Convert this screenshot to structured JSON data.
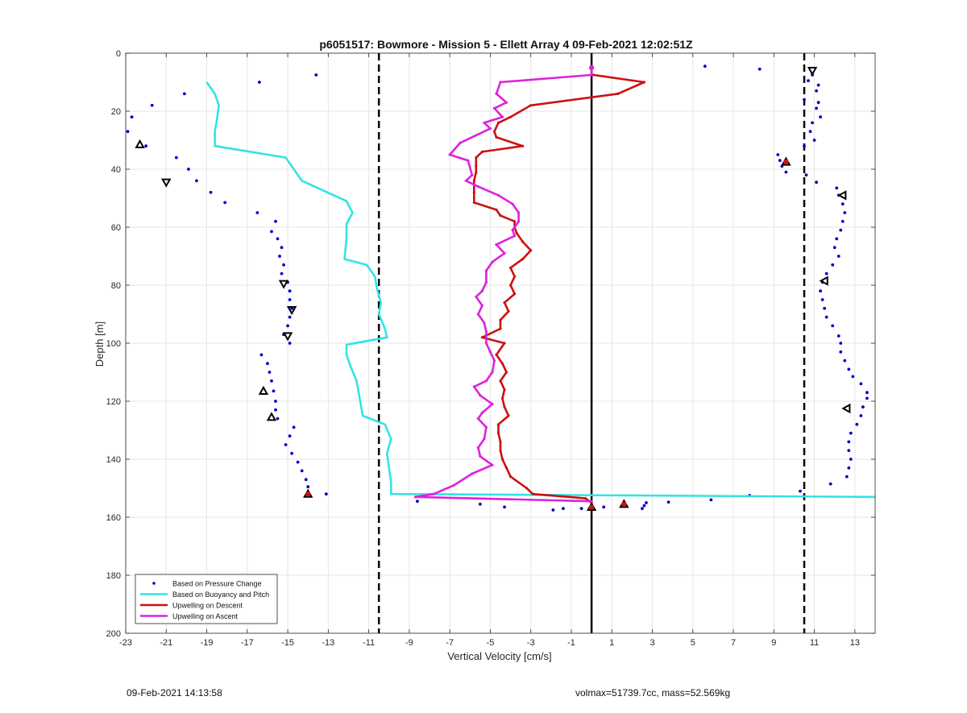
{
  "footer": {
    "date": "09-Feb-2021 14:13:58",
    "params": "volmax=51739.7cc, mass=52.569kg"
  },
  "chart_data": {
    "type": "line",
    "title": "p6051517: Bowmore - Mission 5 - Ellett Array 4 09-Feb-2021 12:02:51Z",
    "xlabel": "Vertical Velocity [cm/s]",
    "ylabel": "Depth [m]",
    "xlim": [
      -23,
      14
    ],
    "ylim": [
      0,
      200
    ],
    "y_reversed": true,
    "grid": true,
    "xticks": [
      -23,
      -21,
      -19,
      -17,
      -15,
      -13,
      -11,
      -9,
      -7,
      -5,
      -3,
      -1,
      1,
      3,
      5,
      7,
      9,
      11,
      13
    ],
    "yticks": [
      0,
      20,
      40,
      60,
      80,
      100,
      120,
      140,
      160,
      180,
      200
    ],
    "legend_position": "bottom-left",
    "legend": [
      {
        "label": "Based on Pressure Change",
        "color": "#0000cc",
        "style": "dots"
      },
      {
        "label": "Based on Buoyancy and Pitch",
        "color": "#33e3e3",
        "style": "line"
      },
      {
        "label": "Upwelling on Descent",
        "color": "#cc1111",
        "style": "line"
      },
      {
        "label": "Upwelling on Ascent",
        "color": "#dd22dd",
        "style": "line"
      }
    ],
    "reference_lines": [
      {
        "x": -10.5,
        "style": "dashed",
        "color": "#000000"
      },
      {
        "x": 0.0,
        "style": "solid",
        "color": "#000000"
      },
      {
        "x": 10.5,
        "style": "dashed",
        "color": "#000000"
      }
    ],
    "series": [
      {
        "name": "Based on Pressure Change",
        "color": "#0000cc",
        "marker": "dot",
        "points": [
          [
            -13.6,
            7.5
          ],
          [
            -16.4,
            10
          ],
          [
            -20.1,
            14
          ],
          [
            -21.7,
            18
          ],
          [
            -22.7,
            22
          ],
          [
            -22.9,
            27
          ],
          [
            -22,
            32
          ],
          [
            -20.5,
            36
          ],
          [
            -19.9,
            40
          ],
          [
            -19.5,
            44
          ],
          [
            -18.8,
            48
          ],
          [
            -18.1,
            51.5
          ],
          [
            -16.5,
            55
          ],
          [
            -15.6,
            58
          ],
          [
            -15.8,
            61.5
          ],
          [
            -15.5,
            64
          ],
          [
            -15.3,
            67
          ],
          [
            -15.4,
            70
          ],
          [
            -15.2,
            73
          ],
          [
            -15.3,
            76
          ],
          [
            -15.0,
            79
          ],
          [
            -14.9,
            82
          ],
          [
            -14.9,
            85
          ],
          [
            -14.8,
            88
          ],
          [
            -14.9,
            91
          ],
          [
            -15.0,
            94
          ],
          [
            -15.2,
            97
          ],
          [
            -14.9,
            100
          ],
          [
            -16.3,
            104
          ],
          [
            -16.0,
            107
          ],
          [
            -15.9,
            110
          ],
          [
            -15.8,
            113
          ],
          [
            -15.7,
            116.5
          ],
          [
            -15.6,
            120
          ],
          [
            -15.6,
            123
          ],
          [
            -15.5,
            126
          ],
          [
            -14.7,
            129
          ],
          [
            -14.9,
            132
          ],
          [
            -15.1,
            135
          ],
          [
            -14.8,
            138
          ],
          [
            -14.5,
            141
          ],
          [
            -14.3,
            144
          ],
          [
            -14.1,
            147
          ],
          [
            -14.0,
            149.5
          ],
          [
            -14.0,
            152
          ],
          [
            -13.1,
            152
          ],
          [
            -8.6,
            154.5
          ],
          [
            -5.5,
            155.5
          ],
          [
            -4.3,
            156.5
          ],
          [
            -1.9,
            157.5
          ],
          [
            -1.4,
            157
          ],
          [
            -0.5,
            157
          ],
          [
            0.6,
            156.5
          ],
          [
            1.6,
            155.5
          ],
          [
            2.5,
            157
          ],
          [
            2.6,
            156
          ],
          [
            2.7,
            155
          ],
          [
            3.8,
            154.8
          ],
          [
            5.9,
            154
          ],
          [
            7.8,
            152.5
          ],
          [
            10.3,
            151
          ],
          [
            11.8,
            148.5
          ],
          [
            12.6,
            146
          ],
          [
            12.7,
            143
          ],
          [
            12.8,
            140
          ],
          [
            12.7,
            137
          ],
          [
            12.7,
            134
          ],
          [
            12.8,
            131
          ],
          [
            13.1,
            128
          ],
          [
            13.3,
            125
          ],
          [
            13.4,
            122
          ],
          [
            13.6,
            119
          ],
          [
            13.6,
            117
          ],
          [
            13.3,
            114
          ],
          [
            12.9,
            111.5
          ],
          [
            12.7,
            109
          ],
          [
            12.5,
            106
          ],
          [
            12.3,
            103
          ],
          [
            12.3,
            100
          ],
          [
            12.2,
            97.5
          ],
          [
            11.9,
            94
          ],
          [
            11.6,
            91
          ],
          [
            11.5,
            88
          ],
          [
            11.4,
            85
          ],
          [
            11.3,
            82
          ],
          [
            11.4,
            79
          ],
          [
            11.6,
            76
          ],
          [
            11.9,
            73
          ],
          [
            12.2,
            70
          ],
          [
            12.0,
            67
          ],
          [
            12.1,
            64
          ],
          [
            12.3,
            61
          ],
          [
            12.4,
            58
          ],
          [
            12.5,
            55
          ],
          [
            12.4,
            52
          ],
          [
            12.2,
            49
          ],
          [
            12.1,
            46.5
          ],
          [
            11.1,
            44.5
          ],
          [
            10.6,
            42
          ],
          [
            9.6,
            41
          ],
          [
            9.4,
            39
          ],
          [
            9.3,
            37
          ],
          [
            9.2,
            35
          ],
          [
            10.5,
            32
          ],
          [
            11.0,
            30
          ],
          [
            10.8,
            27
          ],
          [
            10.9,
            24
          ],
          [
            11.3,
            22
          ],
          [
            11.1,
            19
          ],
          [
            11.2,
            17
          ],
          [
            10.5,
            16
          ],
          [
            11.1,
            13
          ],
          [
            11.2,
            11
          ],
          [
            10.7,
            9.5
          ],
          [
            10.9,
            7.5
          ],
          [
            8.3,
            5.5
          ],
          [
            5.6,
            4.5
          ]
        ]
      },
      {
        "name": "Based on Buoyancy and Pitch",
        "color": "#33e3e3",
        "points": [
          [
            -19.0,
            10
          ],
          [
            -18.6,
            14
          ],
          [
            -18.4,
            18
          ],
          [
            -18.5,
            23
          ],
          [
            -18.6,
            27
          ],
          [
            -18.6,
            32
          ],
          [
            -15.1,
            36
          ],
          [
            -14.7,
            40
          ],
          [
            -14.3,
            44
          ],
          [
            -12.1,
            51
          ],
          [
            -11.8,
            55
          ],
          [
            -12.1,
            59
          ],
          [
            -12.1,
            64
          ],
          [
            -12.2,
            71
          ],
          [
            -11.1,
            73
          ],
          [
            -10.7,
            77
          ],
          [
            -10.6,
            81
          ],
          [
            -10.4,
            86
          ],
          [
            -10.5,
            90
          ],
          [
            -10.2,
            95
          ],
          [
            -10.1,
            98
          ],
          [
            -12.1,
            100.5
          ],
          [
            -12.1,
            104
          ],
          [
            -11.9,
            108
          ],
          [
            -11.6,
            113
          ],
          [
            -11.5,
            117
          ],
          [
            -11.4,
            121
          ],
          [
            -11.3,
            125
          ],
          [
            -10.2,
            128
          ],
          [
            -9.9,
            133
          ],
          [
            -10.1,
            138
          ],
          [
            -10.0,
            143
          ],
          [
            -9.9,
            148
          ],
          [
            -9.9,
            152
          ],
          [
            14,
            153
          ]
        ]
      },
      {
        "name": "Upwelling on Descent",
        "color": "#cc1111",
        "points": [
          [
            0.1,
            7.5
          ],
          [
            2.6,
            10
          ],
          [
            1.3,
            14
          ],
          [
            -3.0,
            18
          ],
          [
            -4.0,
            22
          ],
          [
            -4.6,
            24
          ],
          [
            -4.8,
            27
          ],
          [
            -4.7,
            29
          ],
          [
            -3.4,
            32
          ],
          [
            -5.4,
            34
          ],
          [
            -5.7,
            36
          ],
          [
            -5.7,
            39
          ],
          [
            -5.7,
            41
          ],
          [
            -5.8,
            44
          ],
          [
            -5.8,
            48
          ],
          [
            -5.8,
            51.5
          ],
          [
            -4.7,
            54
          ],
          [
            -4.5,
            56
          ],
          [
            -3.8,
            58
          ],
          [
            -3.8,
            60
          ],
          [
            -3.7,
            62
          ],
          [
            -3.4,
            65
          ],
          [
            -3.0,
            68
          ],
          [
            -3.4,
            71
          ],
          [
            -4.0,
            74
          ],
          [
            -3.8,
            77
          ],
          [
            -4.0,
            80
          ],
          [
            -3.8,
            83
          ],
          [
            -4.3,
            86
          ],
          [
            -4.1,
            89
          ],
          [
            -4.5,
            92
          ],
          [
            -4.5,
            95
          ],
          [
            -5.4,
            98
          ],
          [
            -4.3,
            100
          ],
          [
            -4.7,
            104
          ],
          [
            -4.4,
            107
          ],
          [
            -4.2,
            110
          ],
          [
            -4.5,
            113
          ],
          [
            -4.3,
            116
          ],
          [
            -4.4,
            119
          ],
          [
            -4.3,
            122
          ],
          [
            -4.1,
            125
          ],
          [
            -4.6,
            128
          ],
          [
            -4.6,
            131
          ],
          [
            -4.5,
            134
          ],
          [
            -4.5,
            137
          ],
          [
            -4.4,
            140
          ],
          [
            -4.2,
            143
          ],
          [
            -4.0,
            146
          ],
          [
            -3.2,
            150
          ],
          [
            -2.9,
            152
          ],
          [
            -0.3,
            153.5
          ],
          [
            0.0,
            155
          ],
          [
            0.0,
            157
          ]
        ]
      },
      {
        "name": "Upwelling on Ascent",
        "color": "#dd22dd",
        "points": [
          [
            0.0,
            5
          ],
          [
            0.0,
            7.5
          ],
          [
            -4.5,
            10
          ],
          [
            -4.7,
            14
          ],
          [
            -4.2,
            17
          ],
          [
            -4.8,
            19
          ],
          [
            -4.4,
            22
          ],
          [
            -5.3,
            24
          ],
          [
            -5.0,
            26
          ],
          [
            -6.5,
            31
          ],
          [
            -7.0,
            35
          ],
          [
            -6.1,
            37
          ],
          [
            -5.9,
            42
          ],
          [
            -6.2,
            44
          ],
          [
            -5.6,
            46
          ],
          [
            -4.6,
            49
          ],
          [
            -3.9,
            52
          ],
          [
            -3.6,
            55
          ],
          [
            -3.6,
            58
          ],
          [
            -3.9,
            61
          ],
          [
            -3.8,
            63
          ],
          [
            -4.7,
            66
          ],
          [
            -4.3,
            69
          ],
          [
            -4.9,
            72
          ],
          [
            -5.2,
            75
          ],
          [
            -5.2,
            79
          ],
          [
            -5.4,
            82
          ],
          [
            -5.7,
            84
          ],
          [
            -5.4,
            87
          ],
          [
            -5.6,
            90
          ],
          [
            -5.3,
            93
          ],
          [
            -5.2,
            96
          ],
          [
            -5.2,
            100
          ],
          [
            -5.0,
            103
          ],
          [
            -4.8,
            106
          ],
          [
            -4.9,
            110
          ],
          [
            -5.2,
            113
          ],
          [
            -5.8,
            115
          ],
          [
            -5.5,
            118
          ],
          [
            -4.9,
            121
          ],
          [
            -5.4,
            124
          ],
          [
            -5.6,
            126
          ],
          [
            -5.2,
            129
          ],
          [
            -5.3,
            133
          ],
          [
            -5.6,
            136
          ],
          [
            -5.5,
            139
          ],
          [
            -4.9,
            142
          ],
          [
            -5.9,
            145
          ],
          [
            -6.8,
            149
          ],
          [
            -7.8,
            152
          ],
          [
            -8.7,
            153
          ],
          [
            0.0,
            154.5
          ]
        ]
      }
    ],
    "markers": [
      {
        "symbol": "triangle-up",
        "color": "#000000",
        "x": -22.3,
        "y": 31.5
      },
      {
        "symbol": "triangle-down",
        "color": "#000000",
        "x": -21.0,
        "y": 44.5
      },
      {
        "symbol": "triangle-down",
        "color": "#000000",
        "x": -15.2,
        "y": 79.5
      },
      {
        "symbol": "triangle-down",
        "color": "#000000",
        "x": -14.8,
        "y": 88.5
      },
      {
        "symbol": "triangle-down",
        "color": "#000000",
        "x": -15.0,
        "y": 97.5
      },
      {
        "symbol": "triangle-up",
        "color": "#000000",
        "x": -16.2,
        "y": 116.5
      },
      {
        "symbol": "triangle-up",
        "color": "#000000",
        "x": -15.8,
        "y": 125.5
      },
      {
        "symbol": "triangle-up",
        "color": "#000000",
        "x": -14.0,
        "y": 152
      },
      {
        "symbol": "triangle-up",
        "color": "#000000",
        "x": 0.0,
        "y": 156.5
      },
      {
        "symbol": "triangle-up",
        "color": "#000000",
        "x": 1.6,
        "y": 155.5
      },
      {
        "symbol": "triangle-up",
        "color": "#000000",
        "x": 9.6,
        "y": 37.5
      },
      {
        "symbol": "triangle-down",
        "color": "#000000",
        "x": 10.9,
        "y": 6
      },
      {
        "symbol": "triangle-left",
        "color": "#000000",
        "x": 12.4,
        "y": 49
      },
      {
        "symbol": "triangle-left",
        "color": "#000000",
        "x": 11.5,
        "y": 78.5
      },
      {
        "symbol": "triangle-left",
        "color": "#000000",
        "x": 12.6,
        "y": 122.5
      },
      {
        "symbol": "dot",
        "color": "#cc1111",
        "x": -14.0,
        "y": 152
      },
      {
        "symbol": "dot",
        "color": "#cc1111",
        "x": 0.0,
        "y": 156.5
      },
      {
        "symbol": "dot",
        "color": "#cc1111",
        "x": 1.6,
        "y": 155.5
      },
      {
        "symbol": "dot",
        "color": "#cc1111",
        "x": 9.6,
        "y": 37.5
      },
      {
        "symbol": "dot",
        "color": "#dd22dd",
        "x": 0.0,
        "y": 5
      }
    ]
  }
}
